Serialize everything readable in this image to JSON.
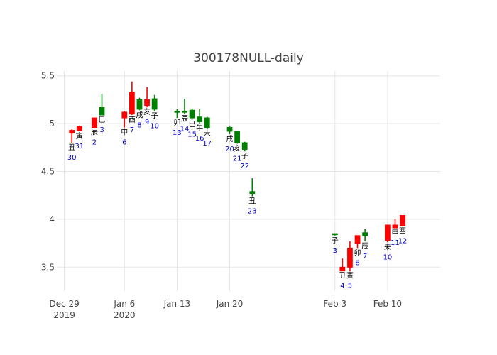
{
  "chart_data": {
    "type": "candlestick",
    "title": "300178NULL-daily",
    "xlabel": "",
    "ylabel": "",
    "ylim": [
      3.25,
      5.55
    ],
    "xrange": [
      "2019-12-28",
      "2020-02-17"
    ],
    "grid": true,
    "colors": {
      "increasing": "#ff0000",
      "decreasing": "#008000",
      "day_label": "#0000cc",
      "branch_label": "#000000"
    },
    "y_ticks": [
      {
        "value": 3.5,
        "label": "3.5"
      },
      {
        "value": 4,
        "label": "4"
      },
      {
        "value": 4.5,
        "label": "4.5"
      },
      {
        "value": 5,
        "label": "5"
      },
      {
        "value": 5.5,
        "label": "5.5"
      }
    ],
    "x_ticks": [
      {
        "date": "2019-12-29",
        "label": "Dec 29",
        "sub": "2019"
      },
      {
        "date": "2020-01-06",
        "label": "Jan 6",
        "sub": "2020"
      },
      {
        "date": "2020-01-13",
        "label": "Jan 13",
        "sub": ""
      },
      {
        "date": "2020-01-20",
        "label": "Jan 20",
        "sub": ""
      },
      {
        "date": "2020-02-03",
        "label": "Feb 3",
        "sub": ""
      },
      {
        "date": "2020-02-10",
        "label": "Feb 10",
        "sub": ""
      }
    ],
    "candles": [
      {
        "date": "2019-12-30",
        "open": 4.9,
        "high": 4.94,
        "low": 4.8,
        "close": 4.93,
        "branch": "丑",
        "day": "30"
      },
      {
        "date": "2019-12-31",
        "open": 4.93,
        "high": 4.98,
        "low": 4.92,
        "close": 4.97,
        "branch": "寅",
        "day": "31"
      },
      {
        "date": "2020-01-02",
        "open": 4.96,
        "high": 5.06,
        "low": 4.96,
        "close": 5.06,
        "branch": "辰",
        "day": "2"
      },
      {
        "date": "2020-01-03",
        "open": 5.17,
        "high": 5.31,
        "low": 5.09,
        "close": 5.09,
        "branch": "巳",
        "day": "3"
      },
      {
        "date": "2020-01-06",
        "open": 5.06,
        "high": 5.13,
        "low": 4.96,
        "close": 5.12,
        "branch": "申",
        "day": "6"
      },
      {
        "date": "2020-01-07",
        "open": 5.1,
        "high": 5.44,
        "low": 5.09,
        "close": 5.33,
        "branch": "酉",
        "day": "7"
      },
      {
        "date": "2020-01-08",
        "open": 5.25,
        "high": 5.27,
        "low": 5.14,
        "close": 5.15,
        "branch": "戌",
        "day": "8"
      },
      {
        "date": "2020-01-09",
        "open": 5.19,
        "high": 5.38,
        "low": 5.17,
        "close": 5.25,
        "branch": "亥",
        "day": "9"
      },
      {
        "date": "2020-01-10",
        "open": 5.26,
        "high": 5.3,
        "low": 5.13,
        "close": 5.15,
        "branch": "子",
        "day": "10"
      },
      {
        "date": "2020-01-13",
        "open": 5.13,
        "high": 5.15,
        "low": 5.06,
        "close": 5.12,
        "branch": "卯",
        "day": "13"
      },
      {
        "date": "2020-01-14",
        "open": 5.13,
        "high": 5.26,
        "low": 5.1,
        "close": 5.12,
        "branch": "辰",
        "day": "14"
      },
      {
        "date": "2020-01-15",
        "open": 5.14,
        "high": 5.16,
        "low": 5.04,
        "close": 5.06,
        "branch": "巳",
        "day": "15"
      },
      {
        "date": "2020-01-16",
        "open": 5.07,
        "high": 5.15,
        "low": 5.0,
        "close": 5.02,
        "branch": "午",
        "day": "16"
      },
      {
        "date": "2020-01-17",
        "open": 5.06,
        "high": 5.07,
        "low": 4.95,
        "close": 4.96,
        "branch": "未",
        "day": "17"
      },
      {
        "date": "2020-01-20",
        "open": 4.96,
        "high": 4.97,
        "low": 4.89,
        "close": 4.92,
        "branch": "戌",
        "day": "20"
      },
      {
        "date": "2020-01-21",
        "open": 4.92,
        "high": 4.92,
        "low": 4.79,
        "close": 4.8,
        "branch": "亥",
        "day": "21"
      },
      {
        "date": "2020-01-22",
        "open": 4.8,
        "high": 4.81,
        "low": 4.71,
        "close": 4.73,
        "branch": "子",
        "day": "22"
      },
      {
        "date": "2020-01-23",
        "open": 4.29,
        "high": 4.43,
        "low": 4.24,
        "close": 4.27,
        "branch": "丑",
        "day": "23"
      },
      {
        "date": "2020-02-03",
        "open": 3.85,
        "high": 3.85,
        "low": 3.83,
        "close": 3.84,
        "branch": "子",
        "day": "3"
      },
      {
        "date": "2020-02-04",
        "open": 3.46,
        "high": 3.59,
        "low": 3.46,
        "close": 3.5,
        "branch": "丑",
        "day": "4"
      },
      {
        "date": "2020-02-05",
        "open": 3.5,
        "high": 3.77,
        "low": 3.46,
        "close": 3.7,
        "branch": "寅",
        "day": "5"
      },
      {
        "date": "2020-02-06",
        "open": 3.75,
        "high": 3.83,
        "low": 3.7,
        "close": 3.83,
        "branch": "卯",
        "day": "6"
      },
      {
        "date": "2020-02-07",
        "open": 3.86,
        "high": 3.9,
        "low": 3.77,
        "close": 3.83,
        "branch": "辰",
        "day": "7"
      },
      {
        "date": "2020-02-10",
        "open": 3.78,
        "high": 3.94,
        "low": 3.76,
        "close": 3.94,
        "branch": "未",
        "day": "10"
      },
      {
        "date": "2020-02-11",
        "open": 3.91,
        "high": 4.0,
        "low": 3.91,
        "close": 3.94,
        "branch": "申",
        "day": "11"
      },
      {
        "date": "2020-02-12",
        "open": 3.93,
        "high": 4.04,
        "low": 3.93,
        "close": 4.04,
        "branch": "酉",
        "day": "12"
      }
    ]
  }
}
